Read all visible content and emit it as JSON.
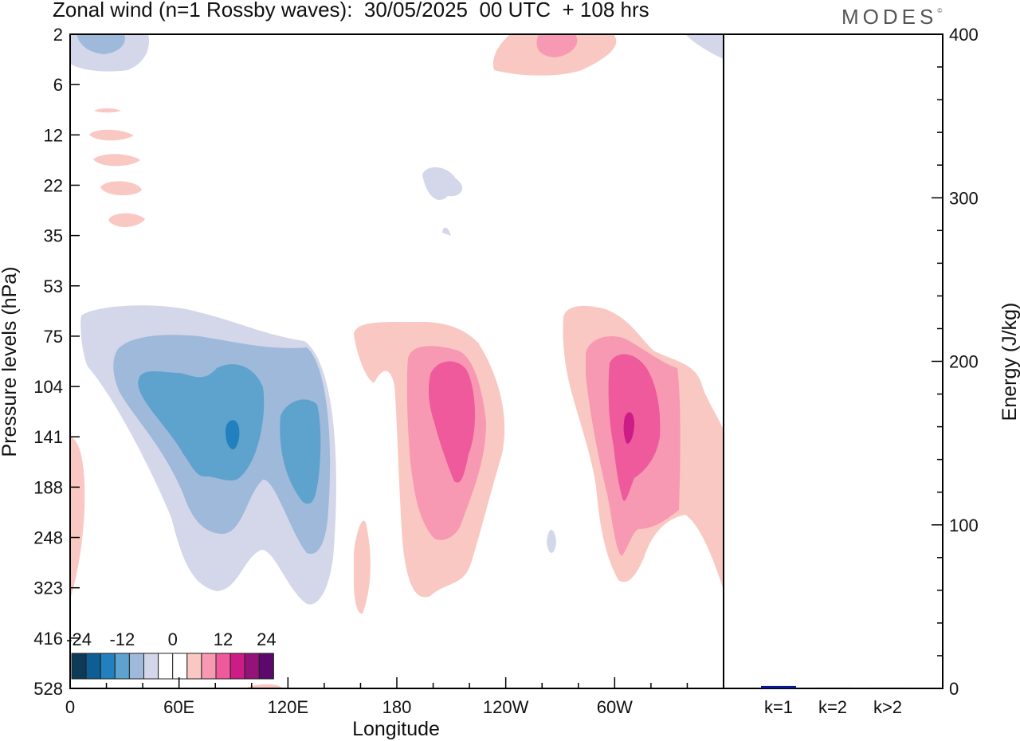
{
  "title": "Zonal wind (n=1 Rossby waves):  30/05/2025  00 UTC  + 108 hrs",
  "brand": "MODES",
  "brand_mark": "©",
  "colors": {
    "neg": [
      "#0c3a57",
      "#0e5e93",
      "#2180bd",
      "#5ea2ce",
      "#9fb9da",
      "#d4d6ea"
    ],
    "pos": [
      "#fac8c2",
      "#f799b2",
      "#ee5a9c",
      "#cc1c86",
      "#951278",
      "#5b0a6b"
    ],
    "zero": "#ffffff",
    "bar": "#0a1a8c"
  },
  "chart_data": [
    {
      "type": "heatmap",
      "title": "Zonal wind (n=1 Rossby waves):  30/05/2025  00 UTC  + 108 hrs",
      "xlabel": "Longitude",
      "ylabel": "Pressure levels (hPa)",
      "x_ticks": [
        "0",
        "60E",
        "120E",
        "180",
        "120W",
        "60W"
      ],
      "x_tick_degrees": [
        0,
        60,
        120,
        180,
        240,
        300
      ],
      "x_range": [
        0,
        360
      ],
      "y_ticks": [
        "2",
        "6",
        "12",
        "22",
        "35",
        "53",
        "75",
        "104",
        "141",
        "188",
        "248",
        "323",
        "416",
        "528"
      ],
      "colorbar": {
        "labels": [
          "-24",
          "-12",
          "0",
          "12",
          "24"
        ],
        "levels": [
          -30,
          -25,
          -20,
          -15,
          -10,
          -5,
          5,
          10,
          15,
          20,
          25,
          30
        ]
      },
      "features": [
        {
          "sign": "negative",
          "center_lon": 90,
          "center_level": "141",
          "peak": -20
        },
        {
          "sign": "negative",
          "center_lon": 128,
          "center_level": "141",
          "peak": -15
        },
        {
          "sign": "positive",
          "center_lon": 200,
          "center_level": "141",
          "peak": 15
        },
        {
          "sign": "positive",
          "center_lon": 307,
          "center_level": "141",
          "peak": 20
        },
        {
          "sign": "positive",
          "center_lon": 270,
          "center_level": "2",
          "peak": 10
        },
        {
          "sign": "negative",
          "center_lon": 20,
          "center_level": "2",
          "peak": -10
        }
      ]
    },
    {
      "type": "bar",
      "categories": [
        "k=1",
        "k=2",
        "k>2"
      ],
      "values": [
        1.5,
        0.5,
        0.5
      ],
      "ylabel": "Energy (J/kg)",
      "ylim": [
        0,
        400
      ],
      "y_ticks": [
        0,
        100,
        200,
        300,
        400
      ]
    }
  ]
}
